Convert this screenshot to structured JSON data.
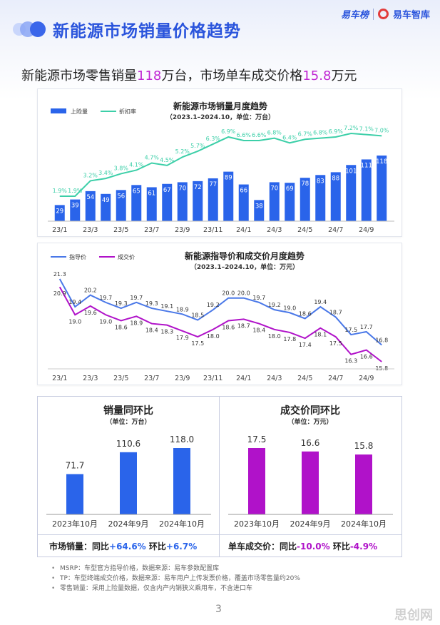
{
  "header": {
    "title": "新能源市场销量价格趋势",
    "logo_yiche": "易车榜",
    "logo_zhiku": "易车智库"
  },
  "headline": {
    "part1": "新能源市场零售销量",
    "num1": "118",
    "part2": "万台，市场单车成交价格",
    "num2": "15.8",
    "part3": "万元"
  },
  "colors": {
    "brand_blue": "#2a54dc",
    "bar_blue": "#2a64ea",
    "teal": "#3ccfa8",
    "purple": "#b012c9",
    "msrp_blue": "#4a78e8"
  },
  "chart_data": [
    {
      "type": "bar",
      "title": "新能源市场销量月度趋势",
      "subtitle": "（2023.1–2024.10，单位：万台）",
      "categories": [
        "23/1",
        "23/2",
        "23/3",
        "23/4",
        "23/5",
        "23/6",
        "23/7",
        "23/8",
        "23/9",
        "23/10",
        "23/11",
        "23/12",
        "24/1",
        "24/2",
        "24/3",
        "24/4",
        "24/5",
        "24/6",
        "24/7",
        "24/8",
        "24/9",
        "24/10"
      ],
      "tick_labels": [
        "23/1",
        "23/3",
        "23/5",
        "23/7",
        "23/9",
        "23/11",
        "24/1",
        "24/3",
        "24/5",
        "24/7",
        "24/9"
      ],
      "series": [
        {
          "name": "上险量",
          "type": "bar",
          "values": [
            29,
            39,
            54,
            49,
            56,
            65,
            61,
            67,
            70,
            72,
            77,
            89,
            66,
            38,
            70,
            69,
            78,
            83,
            88,
            101,
            111,
            118
          ]
        },
        {
          "name": "折扣率",
          "type": "line",
          "values": [
            1.9,
            1.9,
            3.2,
            3.4,
            3.8,
            4.1,
            4.7,
            4.5,
            5.2,
            5.7,
            6.3,
            6.9,
            6.6,
            6.6,
            6.8,
            6.4,
            6.7,
            6.8,
            6.9,
            7.2,
            7.1,
            7.0
          ],
          "labels": [
            "1.9%",
            "1.9%",
            "3.2%",
            "3.4%",
            "3.8%",
            "4.1%",
            "4.7%",
            "4.5%",
            "5.2%",
            "5.7%",
            "6.3%",
            "6.9%",
            "6.6%",
            "6.6%",
            "6.8%",
            "6.4%",
            "6.7%",
            "6.8%",
            "6.9%",
            "7.2%",
            "7.1%",
            "7.0%"
          ]
        }
      ]
    },
    {
      "type": "line",
      "title": "新能源指导价和成交价月度趋势",
      "subtitle": "（2023.1–2024.10，单位：万元）",
      "categories": [
        "23/1",
        "23/2",
        "23/3",
        "23/4",
        "23/5",
        "23/6",
        "23/7",
        "23/8",
        "23/9",
        "23/10",
        "23/11",
        "23/12",
        "24/1",
        "24/2",
        "24/3",
        "24/4",
        "24/5",
        "24/6",
        "24/7",
        "24/8",
        "24/9",
        "24/10"
      ],
      "tick_labels": [
        "23/1",
        "23/3",
        "23/5",
        "23/7",
        "23/9",
        "23/11",
        "24/1",
        "24/3",
        "24/5",
        "24/7",
        "24/9"
      ],
      "series": [
        {
          "name": "指导价",
          "values": [
            21.3,
            19.4,
            20.2,
            19.7,
            19.3,
            19.7,
            19.3,
            19.1,
            18.9,
            18.5,
            19.2,
            20.0,
            20.0,
            19.7,
            19.2,
            19.0,
            18.6,
            19.4,
            18.7,
            17.5,
            17.7,
            16.8
          ]
        },
        {
          "name": "成交价",
          "values": [
            20.9,
            19.0,
            19.6,
            19.0,
            18.6,
            18.9,
            18.4,
            18.3,
            17.9,
            17.5,
            18.0,
            18.6,
            18.7,
            18.4,
            18.0,
            17.8,
            17.4,
            18.1,
            17.5,
            16.3,
            16.6,
            15.8
          ]
        }
      ]
    },
    {
      "type": "bar",
      "title": "销量同环比",
      "subtitle": "（单位：万台）",
      "categories": [
        "2023年10月",
        "2024年9月",
        "2024年10月"
      ],
      "values": [
        71.7,
        110.6,
        118.0
      ],
      "labels": [
        "71.7",
        "110.6",
        "118.0"
      ]
    },
    {
      "type": "bar",
      "title": "成交价同环比",
      "subtitle": "（单位：万元）",
      "categories": [
        "2023年10月",
        "2024年9月",
        "2024年10月"
      ],
      "values": [
        17.5,
        16.6,
        15.8
      ],
      "labels": [
        "17.5",
        "16.6",
        "15.8"
      ]
    }
  ],
  "footer_stats": {
    "left_label": "市场销量：同比",
    "left_yoy": "+64.6%",
    "left_mom_label": " 环比",
    "left_mom": "+6.7%",
    "right_label": "单车成交价：同比",
    "right_yoy": "-10.0%",
    "right_mom_label": " 环比",
    "right_mom": "-4.9%"
  },
  "notes": [
    "MSRP：车型官方指导价格，数据来源：易车参数配置库",
    "TP：车型终端成交价格，数据来源：易车用户上传发票价格，覆盖市场零售量约20%",
    "零售销量：采用上险量数据，仅含内产内销狭义乘用车，不含进口车"
  ],
  "page_number": "3",
  "watermark": "思创网"
}
